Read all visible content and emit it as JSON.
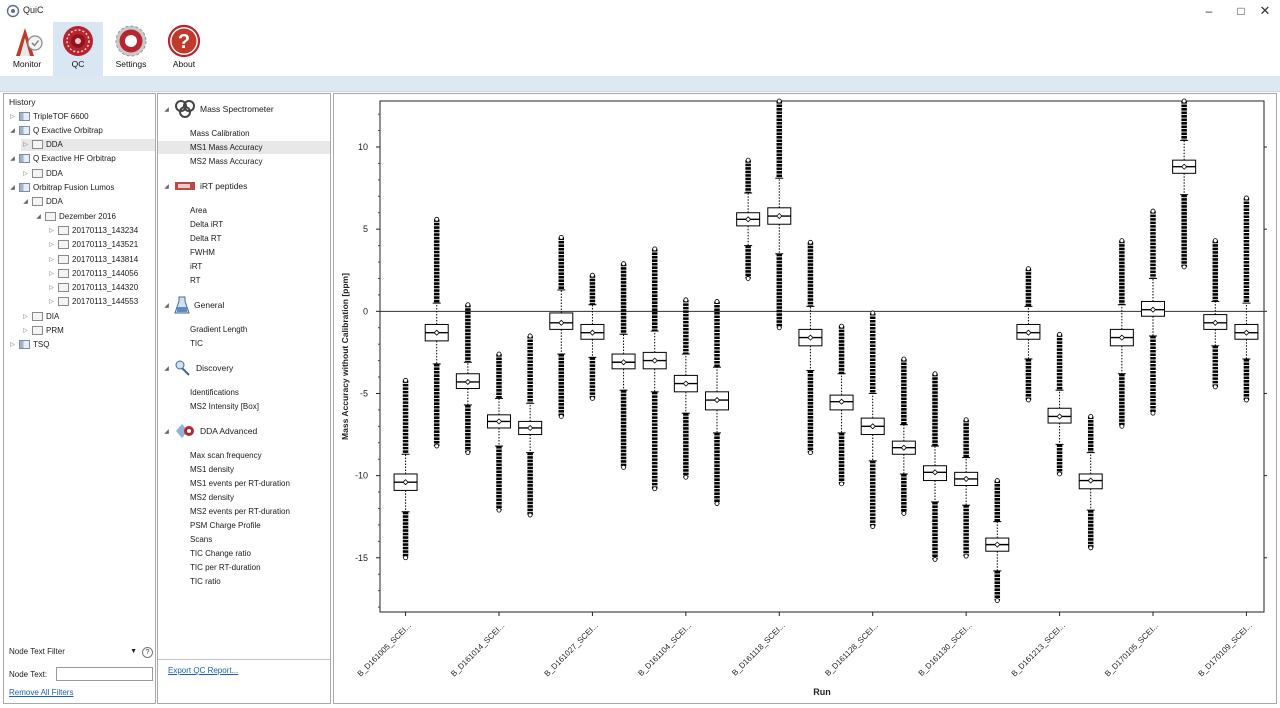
{
  "window": {
    "title": "QuiC"
  },
  "ribbon": {
    "buttons": [
      {
        "label": "Monitor"
      },
      {
        "label": "QC"
      },
      {
        "label": "Settings"
      },
      {
        "label": "About"
      }
    ]
  },
  "history": {
    "label": "History",
    "nodes": [
      {
        "label": "TripleTOF 6600"
      },
      {
        "label": "Q Exactive Orbitrap"
      },
      {
        "label": "DDA"
      },
      {
        "label": "Q Exactive HF Orbitrap"
      },
      {
        "label": "DDA"
      },
      {
        "label": "Orbitrap Fusion Lumos"
      },
      {
        "label": "DDA"
      },
      {
        "label": "Dezember 2016"
      },
      {
        "label": "20170113_143234"
      },
      {
        "label": "20170113_143521"
      },
      {
        "label": "20170113_143814"
      },
      {
        "label": "20170113_144056"
      },
      {
        "label": "20170113_144320"
      },
      {
        "label": "20170113_144553"
      },
      {
        "label": "DIA"
      },
      {
        "label": "PRM"
      },
      {
        "label": "TSQ"
      }
    ],
    "filter_select": "Node Text Filter",
    "node_text_label": "Node Text:",
    "node_text_value": "",
    "remove_filters": "Remove All Filters"
  },
  "metrics": {
    "categories": [
      {
        "label": "Mass Spectrometer",
        "icon": "mass-spectrometer-icon",
        "items": [
          "Mass Calibration",
          "MS1 Mass Accuracy",
          "MS2 Mass Accuracy"
        ]
      },
      {
        "label": "iRT peptides",
        "icon": "irt-peptides-icon",
        "items": [
          "Area",
          "Delta iRT",
          "Delta RT",
          "FWHM",
          "iRT",
          "RT"
        ]
      },
      {
        "label": "General",
        "icon": "general-icon",
        "items": [
          "Gradient Length",
          "TIC"
        ]
      },
      {
        "label": "Discovery",
        "icon": "discovery-icon",
        "items": [
          "Identifications",
          "MS2 Intensity [Box]"
        ]
      },
      {
        "label": "DDA Advanced",
        "icon": "dda-advanced-icon",
        "items": [
          "Max scan frequency",
          "MS1 density",
          "MS1 events per RT-duration",
          "MS2 density",
          "MS2 events per RT-duration",
          "PSM Charge Profile",
          "Scans",
          "TIC Change ratio",
          "TIC per RT-duration",
          "TIC ratio"
        ]
      }
    ],
    "selected_item": "MS1 Mass Accuracy",
    "export_label": "Export QC Report..."
  },
  "chart_data": {
    "type": "box",
    "title": "",
    "xlabel": "Run",
    "ylabel": "Mass Accuracy without Calibration [ppm]",
    "ylim": [
      -18.3,
      12.8
    ],
    "yticks": [
      10,
      5,
      0,
      -5,
      -10,
      -15
    ],
    "reference_line": 0,
    "x_tick_labels": [
      "B_D161005_SCEI...",
      "B_D161014_SCEI...",
      "B_D161027_SCEI...",
      "B_D161104_SCEI...",
      "B_D161118_SCEI...",
      "B_D161128_SCEI...",
      "B_D161130_SCEI...",
      "B_D161213_SCEI...",
      "B_D170105_SCEI...",
      "B_D170109_SCEI..."
    ],
    "boxes": [
      {
        "median": -10.4,
        "q1": -10.9,
        "q3": -9.9,
        "whisker_low": -12.2,
        "whisker_high": -8.7,
        "outlier_low": -15.0,
        "outlier_high": -4.2,
        "mean": -10.4
      },
      {
        "median": -1.3,
        "q1": -1.8,
        "q3": -0.8,
        "whisker_low": -3.2,
        "whisker_high": 0.5,
        "outlier_low": -8.2,
        "outlier_high": 5.6,
        "mean": -1.3
      },
      {
        "median": -4.3,
        "q1": -4.7,
        "q3": -3.8,
        "whisker_low": -5.7,
        "whisker_high": -3.1,
        "outlier_low": -8.6,
        "outlier_high": 0.4,
        "mean": -4.3
      },
      {
        "median": -6.7,
        "q1": -7.1,
        "q3": -6.3,
        "whisker_low": -8.2,
        "whisker_high": -5.3,
        "outlier_low": -12.1,
        "outlier_high": -2.6,
        "mean": -6.7
      },
      {
        "median": -7.1,
        "q1": -7.5,
        "q3": -6.7,
        "whisker_low": -8.6,
        "whisker_high": -5.6,
        "outlier_low": -12.4,
        "outlier_high": -1.5,
        "mean": -7.1
      },
      {
        "median": -0.7,
        "q1": -1.1,
        "q3": -0.1,
        "whisker_low": -2.6,
        "whisker_high": 1.3,
        "outlier_low": -6.4,
        "outlier_high": 4.5,
        "mean": -0.7
      },
      {
        "median": -1.3,
        "q1": -1.7,
        "q3": -0.8,
        "whisker_low": -2.8,
        "whisker_high": 0.4,
        "outlier_low": -5.3,
        "outlier_high": 2.2,
        "mean": -1.3
      },
      {
        "median": -3.1,
        "q1": -3.5,
        "q3": -2.6,
        "whisker_low": -4.8,
        "whisker_high": -1.4,
        "outlier_low": -9.5,
        "outlier_high": 2.9,
        "mean": -3.1
      },
      {
        "median": -3.0,
        "q1": -3.5,
        "q3": -2.5,
        "whisker_low": -4.9,
        "whisker_high": -1.2,
        "outlier_low": -10.8,
        "outlier_high": 3.8,
        "mean": -3.0
      },
      {
        "median": -4.4,
        "q1": -4.9,
        "q3": -3.9,
        "whisker_low": -6.2,
        "whisker_high": -2.6,
        "outlier_low": -10.1,
        "outlier_high": 0.7,
        "mean": -4.4
      },
      {
        "median": -5.4,
        "q1": -6.0,
        "q3": -4.9,
        "whisker_low": -7.4,
        "whisker_high": -3.4,
        "outlier_low": -11.7,
        "outlier_high": 0.6,
        "mean": -5.4
      },
      {
        "median": 5.6,
        "q1": 5.2,
        "q3": 6.0,
        "whisker_low": 4.0,
        "whisker_high": 7.2,
        "outlier_low": 2.0,
        "outlier_high": 9.2,
        "mean": 5.6
      },
      {
        "median": 5.8,
        "q1": 5.3,
        "q3": 6.3,
        "whisker_low": 3.5,
        "whisker_high": 8.1,
        "outlier_low": -1.0,
        "outlier_high": 12.8,
        "mean": 5.8
      },
      {
        "median": -1.6,
        "q1": -2.1,
        "q3": -1.1,
        "whisker_low": -3.6,
        "whisker_high": 0.3,
        "outlier_low": -8.6,
        "outlier_high": 4.2,
        "mean": -1.6
      },
      {
        "median": -5.5,
        "q1": -6.0,
        "q3": -5.1,
        "whisker_low": -7.4,
        "whisker_high": -3.8,
        "outlier_low": -10.5,
        "outlier_high": -0.9,
        "mean": -5.5
      },
      {
        "median": -7.0,
        "q1": -7.5,
        "q3": -6.5,
        "whisker_low": -9.1,
        "whisker_high": -5.0,
        "outlier_low": -13.1,
        "outlier_high": -0.1,
        "mean": -7.0
      },
      {
        "median": -8.3,
        "q1": -8.7,
        "q3": -7.9,
        "whisker_low": -9.9,
        "whisker_high": -6.9,
        "outlier_low": -12.3,
        "outlier_high": -2.9,
        "mean": -8.3
      },
      {
        "median": -9.8,
        "q1": -10.3,
        "q3": -9.4,
        "whisker_low": -11.6,
        "whisker_high": -8.2,
        "outlier_low": -15.1,
        "outlier_high": -3.8,
        "mean": -9.8
      },
      {
        "median": -10.2,
        "q1": -10.6,
        "q3": -9.8,
        "whisker_low": -11.8,
        "whisker_high": -8.9,
        "outlier_low": -14.9,
        "outlier_high": -6.6,
        "mean": -10.2
      },
      {
        "median": -14.2,
        "q1": -14.6,
        "q3": -13.8,
        "whisker_low": -15.8,
        "whisker_high": -12.8,
        "outlier_low": -17.6,
        "outlier_high": -10.3,
        "mean": -14.2
      },
      {
        "median": -1.3,
        "q1": -1.7,
        "q3": -0.8,
        "whisker_low": -2.9,
        "whisker_high": 0.3,
        "outlier_low": -5.4,
        "outlier_high": 2.6,
        "mean": -1.3
      },
      {
        "median": -6.4,
        "q1": -6.8,
        "q3": -5.9,
        "whisker_low": -8.1,
        "whisker_high": -4.8,
        "outlier_low": -9.9,
        "outlier_high": -1.4,
        "mean": -6.4
      },
      {
        "median": -10.3,
        "q1": -10.8,
        "q3": -9.9,
        "whisker_low": -12.1,
        "whisker_high": -8.6,
        "outlier_low": -14.4,
        "outlier_high": -6.4,
        "mean": -10.3
      },
      {
        "median": -1.6,
        "q1": -2.1,
        "q3": -1.1,
        "whisker_low": -3.8,
        "whisker_high": 0.4,
        "outlier_low": -7.0,
        "outlier_high": 4.3,
        "mean": -1.6
      },
      {
        "median": 0.1,
        "q1": -0.3,
        "q3": 0.6,
        "whisker_low": -1.5,
        "whisker_high": 2.0,
        "outlier_low": -6.2,
        "outlier_high": 6.1,
        "mean": 0.1
      },
      {
        "median": 8.8,
        "q1": 8.4,
        "q3": 9.2,
        "whisker_low": 7.1,
        "whisker_high": 10.4,
        "outlier_low": 2.7,
        "outlier_high": 12.8,
        "mean": 8.8
      },
      {
        "median": -0.7,
        "q1": -1.1,
        "q3": -0.2,
        "whisker_low": -2.1,
        "whisker_high": 0.6,
        "outlier_low": -4.6,
        "outlier_high": 4.3,
        "mean": -0.7
      },
      {
        "median": -1.3,
        "q1": -1.7,
        "q3": -0.8,
        "whisker_low": -2.9,
        "whisker_high": 0.5,
        "outlier_low": -5.4,
        "outlier_high": 6.9,
        "mean": -1.3
      }
    ]
  }
}
